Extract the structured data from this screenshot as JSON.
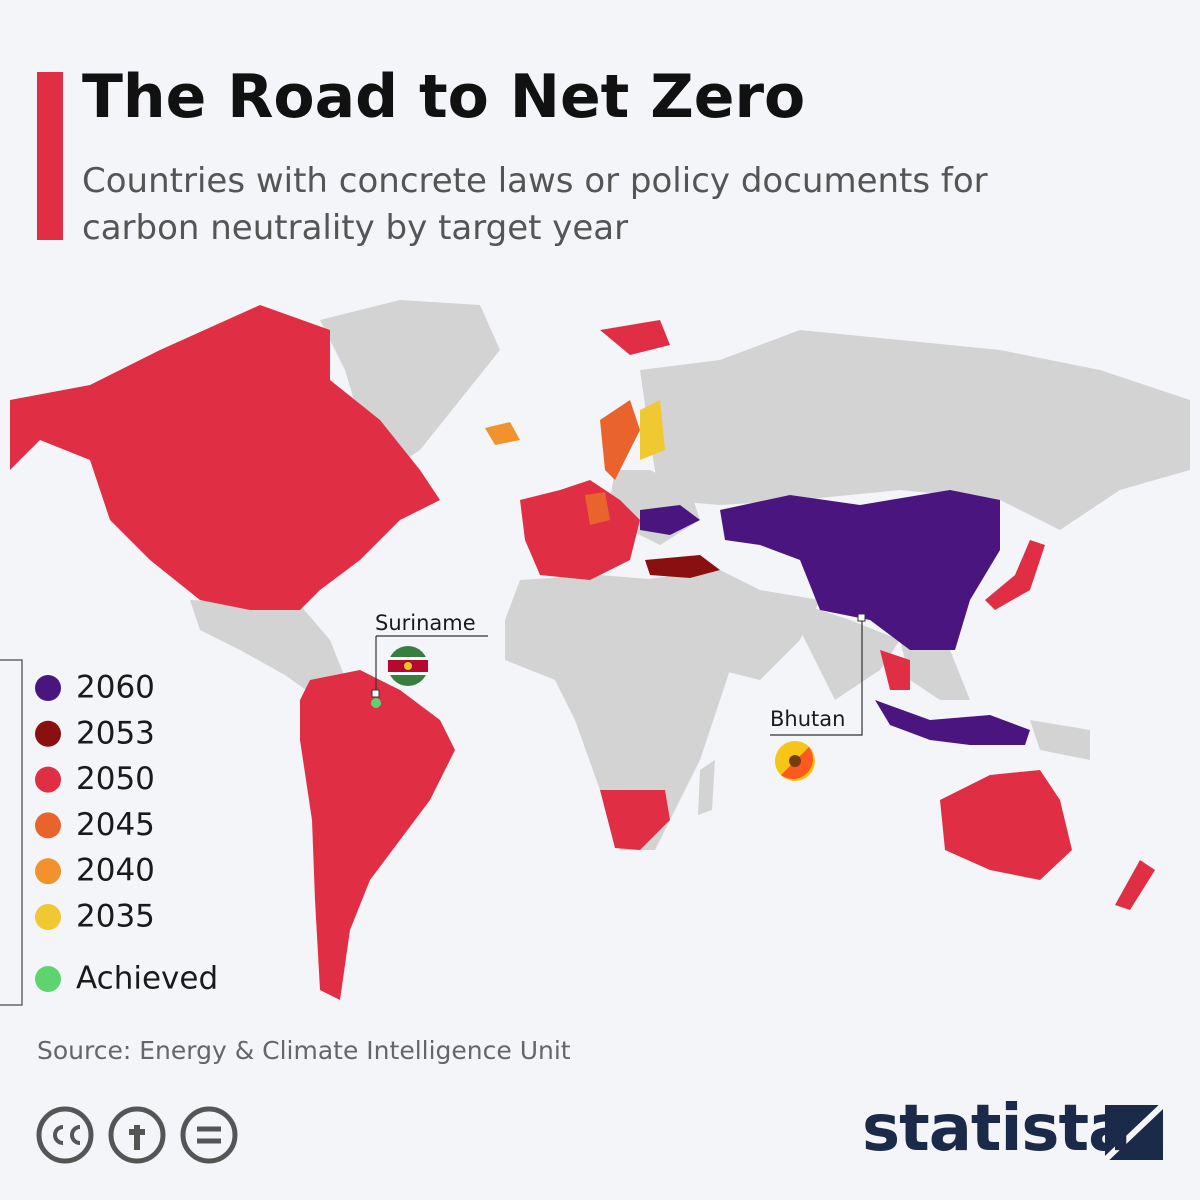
{
  "header": {
    "title": "The Road to Net Zero",
    "subtitle": "Countries with concrete laws or policy documents for carbon neutrality by target year"
  },
  "legend": {
    "items": [
      {
        "label": "2060",
        "color": "#4b1580"
      },
      {
        "label": "2053",
        "color": "#8a1010"
      },
      {
        "label": "2050",
        "color": "#e02f45"
      },
      {
        "label": "2045",
        "color": "#e8642c"
      },
      {
        "label": "2040",
        "color": "#f2922c"
      },
      {
        "label": "2035",
        "color": "#f0c832"
      },
      {
        "label": "Achieved",
        "color": "#5ed46e"
      }
    ]
  },
  "annotations": [
    "Suriname",
    "Bhutan"
  ],
  "footer": {
    "source": "Source: Energy & Climate Intelligence Unit",
    "brand": "statista"
  }
}
